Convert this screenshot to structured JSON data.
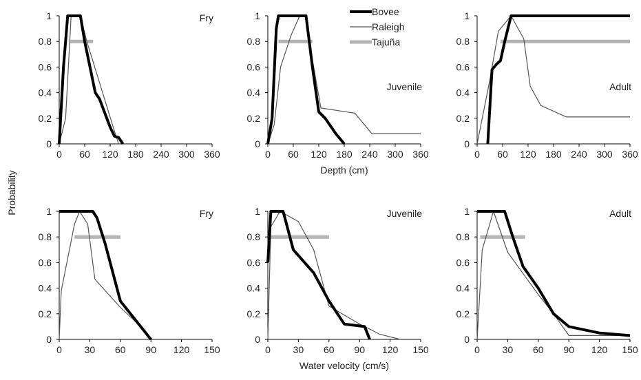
{
  "chart_data": {
    "type": "line",
    "ylabel": "Probability",
    "series_style": {
      "Bovee": {
        "color": "#000000",
        "width": 4
      },
      "Raleigh": {
        "color": "#555555",
        "width": 1.2
      },
      "Tajuña": {
        "color": "#b4b4b4",
        "width": 5
      }
    },
    "legend": {
      "placement": "top-center",
      "entries": [
        "Bovee",
        "Raleigh",
        "Tajuña"
      ]
    },
    "rows": [
      {
        "xlabel": "Depth (cm)",
        "xlim": [
          0,
          360
        ],
        "xticks": [
          0,
          60,
          120,
          180,
          240,
          300,
          360
        ],
        "ylim": [
          0,
          1
        ],
        "yticks": [
          "0",
          "0.2",
          "0.4",
          "0.6",
          "0.8",
          "1"
        ],
        "panels": [
          {
            "label": "Fry",
            "label_pos": "top-right",
            "series": [
              {
                "name": "Bovee",
                "points": [
                  [
                    0,
                    0
                  ],
                  [
                    10,
                    0.6
                  ],
                  [
                    20,
                    1
                  ],
                  [
                    50,
                    1
                  ],
                  [
                    60,
                    0.8
                  ],
                  [
                    85,
                    0.4
                  ],
                  [
                    95,
                    0.35
                  ],
                  [
                    120,
                    0.13
                  ],
                  [
                    130,
                    0.06
                  ],
                  [
                    140,
                    0.05
                  ],
                  [
                    150,
                    0
                  ]
                ]
              },
              {
                "name": "Raleigh",
                "points": [
                  [
                    0,
                    0
                  ],
                  [
                    15,
                    0.2
                  ],
                  [
                    28,
                    1
                  ],
                  [
                    50,
                    1
                  ],
                  [
                    65,
                    0.8
                  ],
                  [
                    130,
                    0.1
                  ],
                  [
                    140,
                    0
                  ]
                ]
              },
              {
                "name": "Tajuña",
                "points": [
                  [
                    25,
                    0.8
                  ],
                  [
                    80,
                    0.8
                  ]
                ]
              }
            ]
          },
          {
            "label": "Juvenile",
            "label_pos": "middle-right",
            "series": [
              {
                "name": "Bovee",
                "points": [
                  [
                    0,
                    0
                  ],
                  [
                    10,
                    0.2
                  ],
                  [
                    20,
                    0.9
                  ],
                  [
                    25,
                    1
                  ],
                  [
                    90,
                    1
                  ],
                  [
                    105,
                    0.6
                  ],
                  [
                    120,
                    0.25
                  ],
                  [
                    135,
                    0.2
                  ],
                  [
                    160,
                    0.08
                  ],
                  [
                    180,
                    0
                  ]
                ]
              },
              {
                "name": "Raleigh",
                "points": [
                  [
                    0,
                    0
                  ],
                  [
                    15,
                    0.15
                  ],
                  [
                    30,
                    0.6
                  ],
                  [
                    55,
                    0.85
                  ],
                  [
                    75,
                    1
                  ],
                  [
                    88,
                    1
                  ],
                  [
                    100,
                    0.75
                  ],
                  [
                    125,
                    0.28
                  ],
                  [
                    205,
                    0.24
                  ],
                  [
                    245,
                    0.08
                  ],
                  [
                    360,
                    0.08
                  ]
                ]
              },
              {
                "name": "Tajuña",
                "points": [
                  [
                    25,
                    0.8
                  ],
                  [
                    105,
                    0.8
                  ]
                ]
              }
            ]
          },
          {
            "label": "Adult",
            "label_pos": "middle-right",
            "series": [
              {
                "name": "Bovee",
                "points": [
                  [
                    25,
                    0
                  ],
                  [
                    35,
                    0.58
                  ],
                  [
                    45,
                    0.62
                  ],
                  [
                    55,
                    0.65
                  ],
                  [
                    65,
                    0.8
                  ],
                  [
                    80,
                    1
                  ],
                  [
                    360,
                    1
                  ]
                ]
              },
              {
                "name": "Raleigh",
                "points": [
                  [
                    0,
                    0
                  ],
                  [
                    30,
                    0.5
                  ],
                  [
                    50,
                    0.88
                  ],
                  [
                    80,
                    1
                  ],
                  [
                    110,
                    0.82
                  ],
                  [
                    125,
                    0.45
                  ],
                  [
                    150,
                    0.3
                  ],
                  [
                    210,
                    0.21
                  ],
                  [
                    360,
                    0.21
                  ]
                ]
              },
              {
                "name": "Tajuña",
                "points": [
                  [
                    55,
                    0.8
                  ],
                  [
                    360,
                    0.8
                  ]
                ]
              }
            ]
          }
        ]
      },
      {
        "xlabel": "Water velocity (cm/s)",
        "xlim": [
          0,
          150
        ],
        "xticks": [
          0,
          30,
          60,
          90,
          120,
          150
        ],
        "ylim": [
          0,
          1
        ],
        "yticks": [
          "0",
          "0.2",
          "0.4",
          "0.6",
          "0.8",
          "1"
        ],
        "panels": [
          {
            "label": "Fry",
            "label_pos": "top-right",
            "series": [
              {
                "name": "Bovee",
                "points": [
                  [
                    0,
                    1
                  ],
                  [
                    33,
                    1
                  ],
                  [
                    37,
                    0.95
                  ],
                  [
                    45,
                    0.75
                  ],
                  [
                    60,
                    0.3
                  ],
                  [
                    85,
                    0.05
                  ],
                  [
                    90,
                    0
                  ]
                ]
              },
              {
                "name": "Raleigh",
                "points": [
                  [
                    0,
                    0
                  ],
                  [
                    2,
                    0.38
                  ],
                  [
                    15,
                    0.9
                  ],
                  [
                    20,
                    1
                  ],
                  [
                    28,
                    0.9
                  ],
                  [
                    35,
                    0.47
                  ],
                  [
                    60,
                    0.25
                  ],
                  [
                    80,
                    0.1
                  ],
                  [
                    90,
                    0
                  ]
                ]
              },
              {
                "name": "Tajuña",
                "points": [
                  [
                    15,
                    0.8
                  ],
                  [
                    60,
                    0.8
                  ]
                ]
              }
            ]
          },
          {
            "label": "Juvenile",
            "label_pos": "top-right",
            "series": [
              {
                "name": "Bovee",
                "points": [
                  [
                    0,
                    0.6
                  ],
                  [
                    3,
                    1
                  ],
                  [
                    15,
                    1
                  ],
                  [
                    25,
                    0.7
                  ],
                  [
                    45,
                    0.52
                  ],
                  [
                    60,
                    0.3
                  ],
                  [
                    75,
                    0.12
                  ],
                  [
                    95,
                    0.1
                  ],
                  [
                    100,
                    0
                  ]
                ]
              },
              {
                "name": "Raleigh",
                "points": [
                  [
                    0,
                    0
                  ],
                  [
                    3,
                    0.88
                  ],
                  [
                    12,
                    1
                  ],
                  [
                    30,
                    0.92
                  ],
                  [
                    45,
                    0.7
                  ],
                  [
                    60,
                    0.26
                  ],
                  [
                    90,
                    0.12
                  ],
                  [
                    110,
                    0.04
                  ],
                  [
                    130,
                    0
                  ]
                ]
              },
              {
                "name": "Tajuña",
                "points": [
                  [
                    0,
                    0.8
                  ],
                  [
                    60,
                    0.8
                  ]
                ]
              }
            ]
          },
          {
            "label": "Adult",
            "label_pos": "top-right",
            "series": [
              {
                "name": "Bovee",
                "points": [
                  [
                    0,
                    1
                  ],
                  [
                    27,
                    1
                  ],
                  [
                    35,
                    0.8
                  ],
                  [
                    45,
                    0.57
                  ],
                  [
                    60,
                    0.4
                  ],
                  [
                    75,
                    0.2
                  ],
                  [
                    90,
                    0.1
                  ],
                  [
                    120,
                    0.05
                  ],
                  [
                    150,
                    0.03
                  ]
                ]
              },
              {
                "name": "Raleigh",
                "points": [
                  [
                    0,
                    0
                  ],
                  [
                    5,
                    0.7
                  ],
                  [
                    16,
                    1
                  ],
                  [
                    30,
                    0.68
                  ],
                  [
                    60,
                    0.35
                  ],
                  [
                    75,
                    0.2
                  ],
                  [
                    90,
                    0.03
                  ],
                  [
                    150,
                    0.03
                  ]
                ]
              },
              {
                "name": "Tajuña",
                "points": [
                  [
                    3,
                    0.8
                  ],
                  [
                    47,
                    0.8
                  ]
                ]
              }
            ]
          }
        ]
      }
    ]
  }
}
